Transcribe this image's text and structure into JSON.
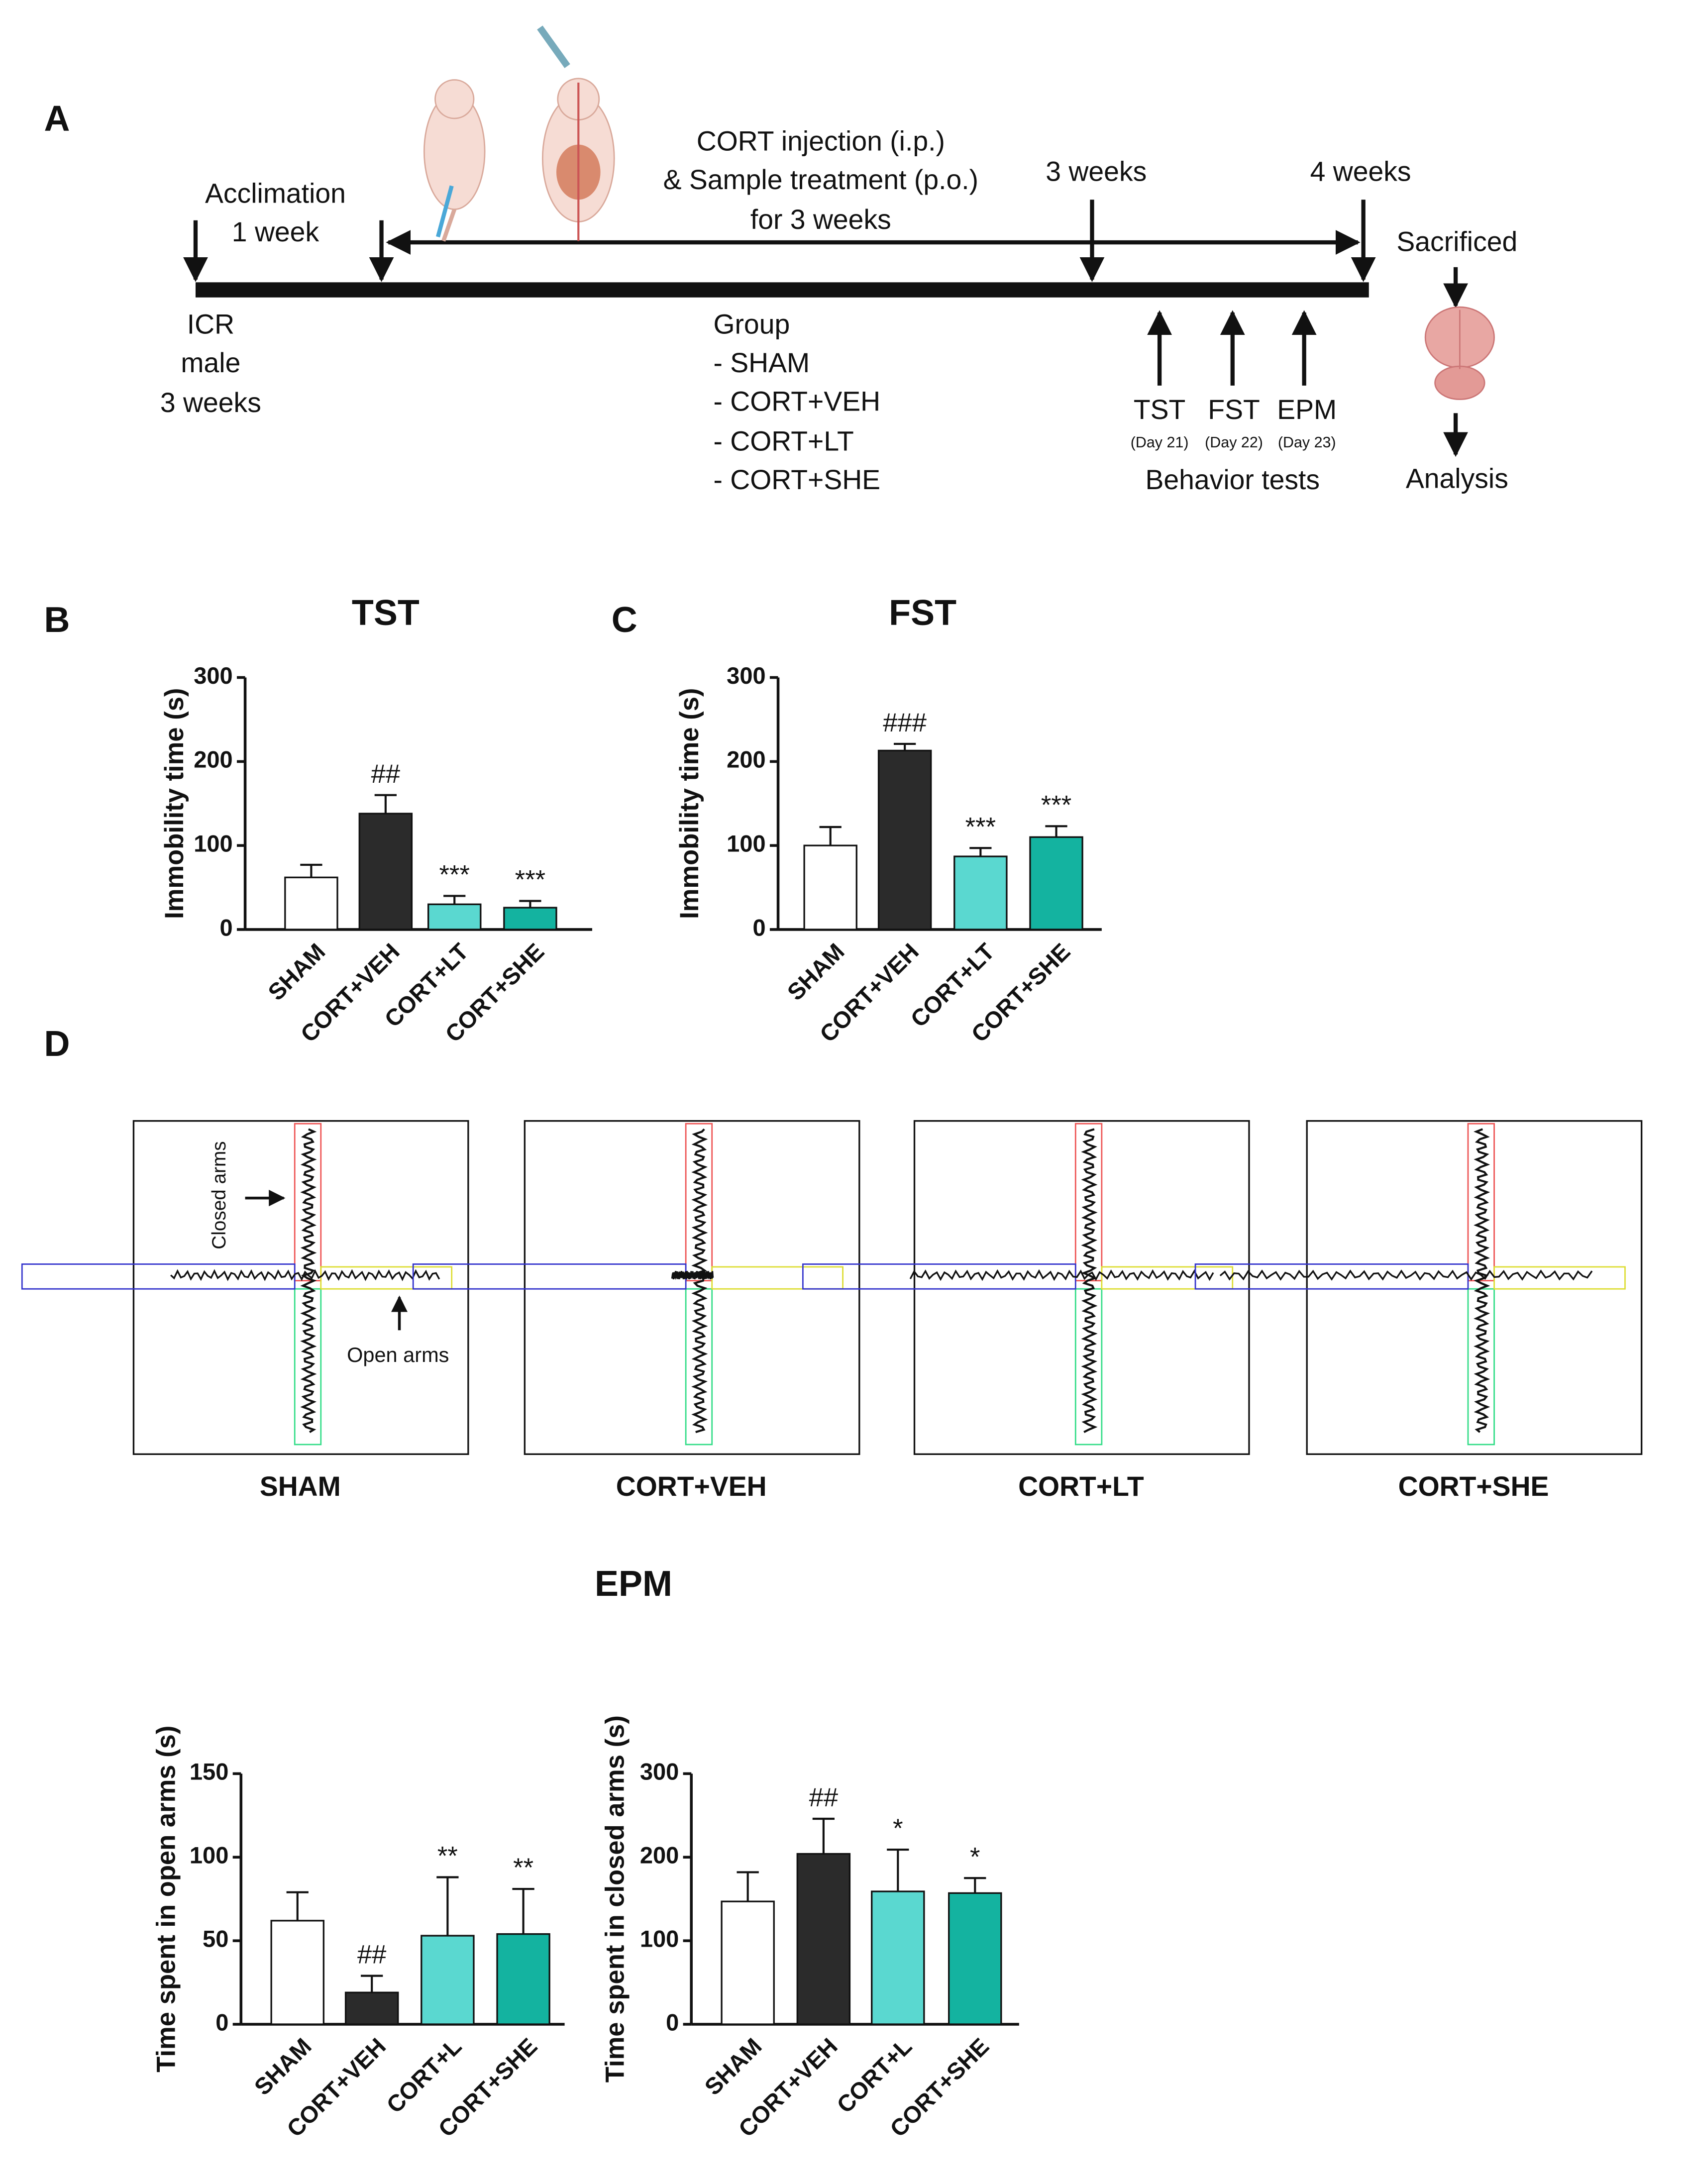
{
  "panel_labels": [
    "A",
    "B",
    "C",
    "D"
  ],
  "timeline": {
    "acclimation": [
      "Acclimation",
      "1 week"
    ],
    "treatment": [
      "CORT injection (i.p.)",
      "& Sample treatment (p.o.)",
      "for 3 weeks"
    ],
    "week3": "3 weeks",
    "week4": "4 weeks",
    "sacrificed": "Sacrificed",
    "analysis": "Analysis",
    "animals": [
      "ICR",
      "male",
      "3 weeks"
    ],
    "groups": [
      "Group",
      "- SHAM",
      "- CORT+VEH",
      "- CORT+LT",
      "- CORT+SHE"
    ],
    "tests": [
      "TST",
      "FST",
      "EPM"
    ],
    "days": [
      "(Day 21)",
      "(Day 22)",
      "(Day 23)"
    ],
    "behavior": "Behavior tests"
  },
  "tracks": {
    "groups": [
      "SHAM",
      "CORT+VEH",
      "CORT+LT",
      "CORT+SHE"
    ],
    "closed": "Closed arms",
    "open": "Open arms"
  },
  "epm_title": "EPM",
  "chart_data": [
    {
      "type": "bar",
      "title": "TST",
      "ylabel": "Immobility time (s)",
      "categories": [
        "SHAM",
        "CORT+VEH",
        "CORT+LT",
        "CORT+SHE"
      ],
      "values": [
        62,
        138,
        30,
        26
      ],
      "errors": [
        15,
        22,
        10,
        8
      ],
      "annotations": [
        null,
        "##",
        "***",
        "***"
      ],
      "colors": [
        "#ffffff",
        "#2b2b2b",
        "#5ad8d0",
        "#14b3a0"
      ],
      "ylim": [
        0,
        300
      ],
      "yticks": [
        0,
        100,
        200,
        300
      ]
    },
    {
      "type": "bar",
      "title": "FST",
      "ylabel": "Immobility time (s)",
      "categories": [
        "SHAM",
        "CORT+VEH",
        "CORT+LT",
        "CORT+SHE"
      ],
      "values": [
        100,
        213,
        87,
        110
      ],
      "errors": [
        22,
        8,
        10,
        13
      ],
      "annotations": [
        null,
        "###",
        "***",
        "***"
      ],
      "colors": [
        "#ffffff",
        "#2b2b2b",
        "#5ad8d0",
        "#14b3a0"
      ],
      "ylim": [
        0,
        300
      ],
      "yticks": [
        0,
        100,
        200,
        300
      ]
    },
    {
      "type": "bar",
      "ylabel": "Time spent in open arms (s)",
      "categories": [
        "SHAM",
        "CORT+VEH",
        "CORT+L",
        "CORT+SHE"
      ],
      "values": [
        62,
        19,
        53,
        54
      ],
      "errors": [
        17,
        10,
        35,
        27
      ],
      "annotations": [
        null,
        "##",
        "**",
        "**"
      ],
      "colors": [
        "#ffffff",
        "#2b2b2b",
        "#5ad8d0",
        "#14b3a0"
      ],
      "ylim": [
        0,
        150
      ],
      "yticks": [
        0,
        50,
        100,
        150
      ]
    },
    {
      "type": "bar",
      "ylabel": "Time spent in closed arms (s)",
      "categories": [
        "SHAM",
        "CORT+VEH",
        "CORT+L",
        "CORT+SHE"
      ],
      "values": [
        147,
        204,
        159,
        157
      ],
      "errors": [
        35,
        42,
        50,
        18
      ],
      "annotations": [
        null,
        "##",
        "*",
        "*"
      ],
      "colors": [
        "#ffffff",
        "#2b2b2b",
        "#5ad8d0",
        "#14b3a0"
      ],
      "ylim": [
        0,
        300
      ],
      "yticks": [
        0,
        100,
        200,
        300
      ]
    }
  ]
}
